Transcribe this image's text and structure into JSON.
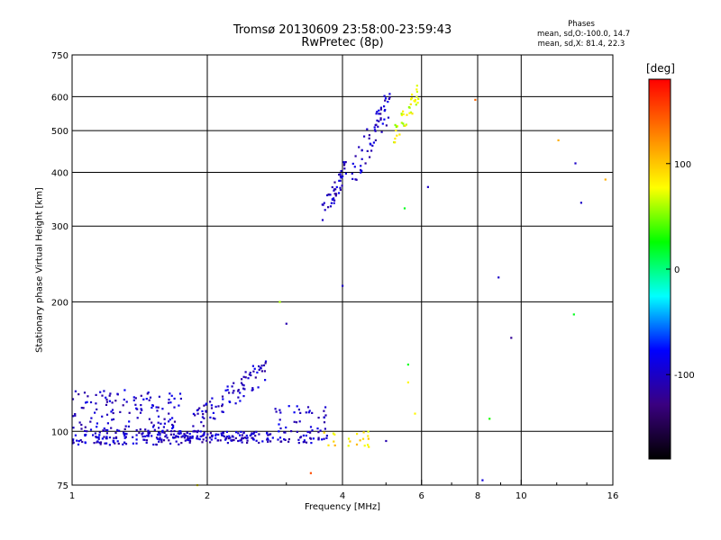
{
  "chart_data": {
    "type": "scatter",
    "title": "Tromsø 20130609 23:58:00-23:59:43",
    "subtitle": "RwPretec (8p)",
    "xlabel": "Frequency [MHz]",
    "ylabel": "Stationary phase Virtual Height [km]",
    "xscale": "log",
    "yscale": "log",
    "xlim": [
      1,
      16
    ],
    "ylim": [
      75,
      750
    ],
    "xticks": [
      1,
      2,
      4,
      6,
      8,
      10,
      16
    ],
    "yticks": [
      75,
      100,
      200,
      300,
      400,
      500,
      600,
      750
    ],
    "grid": true,
    "stats_title": "Phases",
    "stats_lines": [
      "mean, sd,O:-100.0, 14.7",
      "mean, sd,X:  81.4, 22.3"
    ],
    "colorbar": {
      "label": "[deg]",
      "range": [
        -180,
        180
      ],
      "ticks": [
        -100,
        0,
        100
      ],
      "colors": [
        "#000000",
        "#3a0080",
        "#0000ff",
        "#00ffff",
        "#00ff00",
        "#ffff00",
        "#ff8000",
        "#ff0000"
      ]
    },
    "clusters": [
      {
        "f": [
          1.0,
          1.75
        ],
        "h": [
          93,
          102
        ],
        "phase": -100,
        "n": 150
      },
      {
        "f": [
          1.0,
          1.75
        ],
        "h": [
          102,
          125
        ],
        "phase": -100,
        "n": 110
      },
      {
        "f": [
          1.75,
          2.6
        ],
        "h": [
          94,
          100
        ],
        "phase": -100,
        "n": 110
      },
      {
        "f": [
          1.85,
          2.7
        ],
        "h": [
          100,
          150
        ],
        "phase": -100,
        "n": 90
      },
      {
        "f": [
          2.6,
          3.7
        ],
        "h": [
          94,
          100
        ],
        "phase": -100,
        "n": 50
      },
      {
        "f": [
          2.8,
          3.7
        ],
        "h": [
          100,
          115
        ],
        "phase": -95,
        "n": 35
      },
      {
        "f": [
          3.6,
          4.1
        ],
        "h": [
          310,
          440
        ],
        "phase": -100,
        "n": 45
      },
      {
        "f": [
          4.2,
          5.1
        ],
        "h": [
          380,
          640
        ],
        "phase": -100,
        "n": 60
      },
      {
        "f": [
          5.2,
          5.9
        ],
        "h": [
          470,
          650
        ],
        "phase": 70,
        "n": 40
      },
      {
        "f": [
          3.6,
          4.6
        ],
        "h": [
          92,
          100
        ],
        "phase": 90,
        "n": 20
      }
    ],
    "points": [
      {
        "f": 7.9,
        "h": 590,
        "phase": 140
      },
      {
        "f": 6.2,
        "h": 370,
        "phase": -100
      },
      {
        "f": 12.1,
        "h": 475,
        "phase": 110
      },
      {
        "f": 13.2,
        "h": 420,
        "phase": -100
      },
      {
        "f": 13.6,
        "h": 340,
        "phase": -100
      },
      {
        "f": 15.4,
        "h": 385,
        "phase": 110
      },
      {
        "f": 8.9,
        "h": 228,
        "phase": -100
      },
      {
        "f": 9.5,
        "h": 165,
        "phase": -120
      },
      {
        "f": 13.1,
        "h": 187,
        "phase": 20
      },
      {
        "f": 8.5,
        "h": 107,
        "phase": 30
      },
      {
        "f": 8.2,
        "h": 77,
        "phase": -90
      },
      {
        "f": 2.9,
        "h": 200,
        "phase": 60
      },
      {
        "f": 3.0,
        "h": 178,
        "phase": -110
      },
      {
        "f": 4.0,
        "h": 218,
        "phase": -100
      },
      {
        "f": 5.5,
        "h": 330,
        "phase": 20
      },
      {
        "f": 5.6,
        "h": 143,
        "phase": 20
      },
      {
        "f": 5.6,
        "h": 130,
        "phase": 80
      },
      {
        "f": 5.8,
        "h": 110,
        "phase": 80
      },
      {
        "f": 5.0,
        "h": 95,
        "phase": -110
      },
      {
        "f": 3.4,
        "h": 80,
        "phase": 150
      },
      {
        "f": 1.9,
        "h": 75,
        "phase": 80
      }
    ]
  }
}
